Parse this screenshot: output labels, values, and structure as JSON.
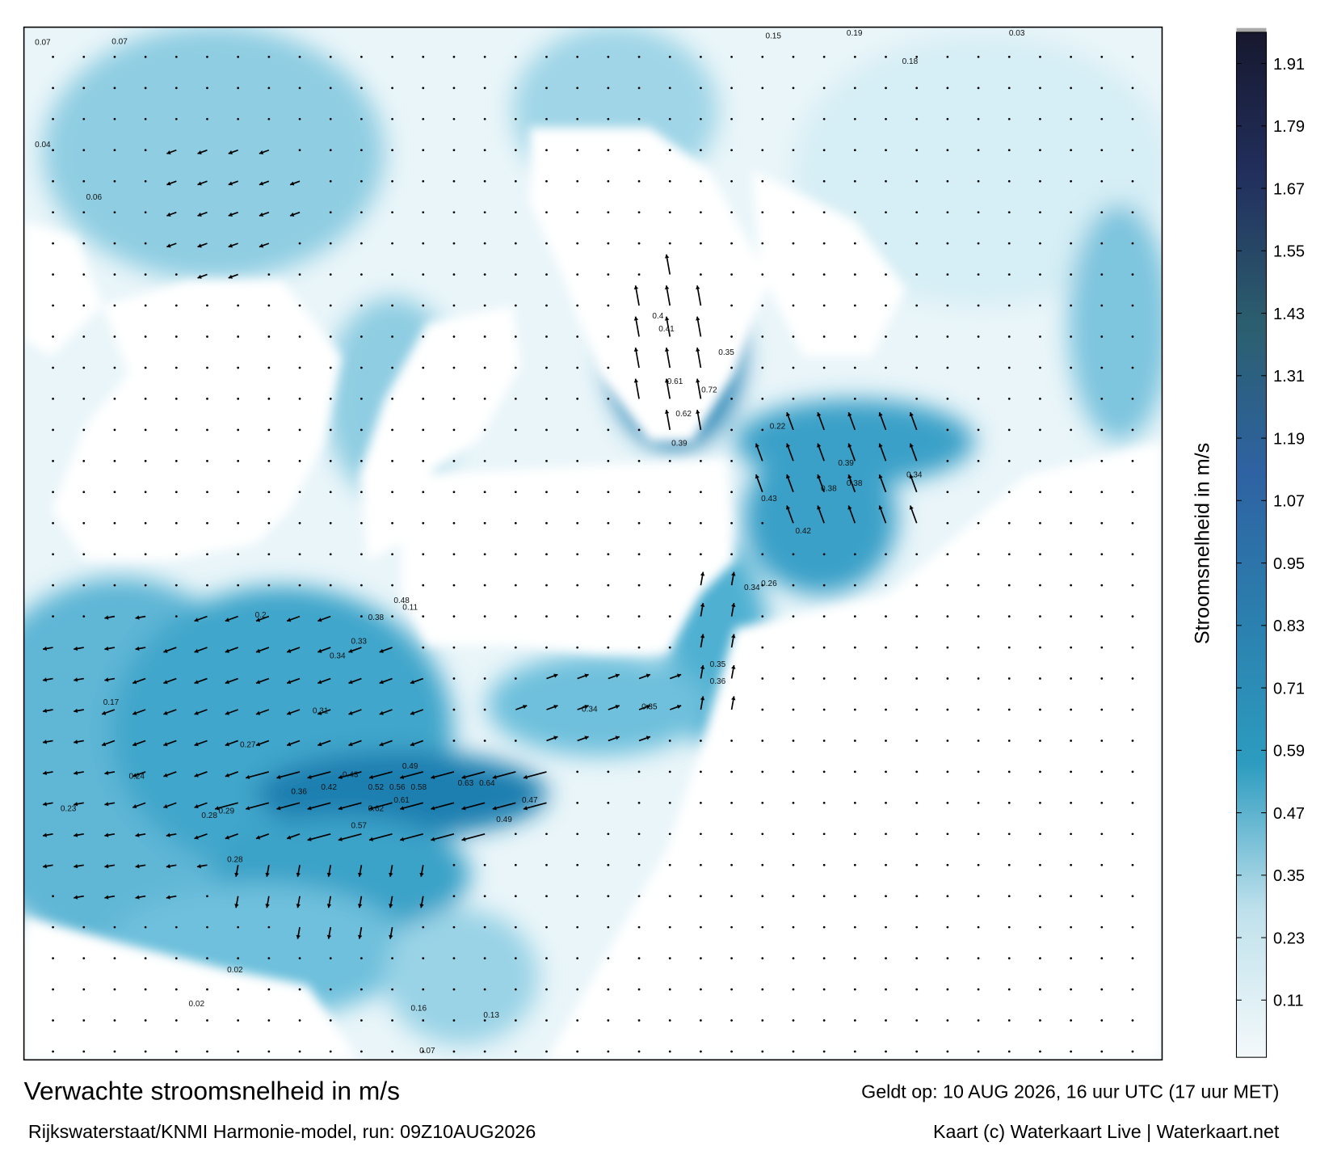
{
  "map": {
    "title": "Verwachte stroomsnelheid in m/s",
    "subtitle": "Rijkswaterstaat/KNMI Harmonie-model, run: 09Z10AUG2026",
    "valid_time": "Geldt op: 10 AUG 2026, 16 uur UTC (17 uur MET)",
    "credit": "Kaart (c) Waterkaart Live | Waterkaart.net",
    "speed_labels": [
      "0.48",
      "0.38",
      "0.11",
      "0.33",
      "0.34",
      "0.31",
      "0.43",
      "0.42",
      "0.36",
      "0.52",
      "0.56",
      "0.58",
      "0.49",
      "0.63",
      "0.64",
      "0.61",
      "0.62",
      "0.57",
      "0.49",
      "0.47",
      "0.2",
      "0.27",
      "0.24",
      "0.28",
      "0.28",
      "0.29",
      "0.62",
      "0.39",
      "0.72",
      "0.61",
      "0.4",
      "0.41",
      "0.35",
      "0.39",
      "0.38",
      "0.38",
      "0.42",
      "0.34",
      "0.22",
      "0.43",
      "0.34",
      "0.26",
      "0.35",
      "0.36",
      "0.35",
      "0.34",
      "0.15",
      "0.19",
      "0.18",
      "0.03",
      "0.07",
      "0.07",
      "0.04",
      "0.06",
      "0.02",
      "0.02",
      "0.16",
      "0.13",
      "0.17",
      "0.23",
      "0.07"
    ],
    "colorbar": {
      "label": "Stroomsnelheid in m/s",
      "lim": [
        0,
        1.97
      ],
      "ticks": [
        0.11,
        0.23,
        0.35,
        0.47,
        0.59,
        0.71,
        0.83,
        0.95,
        1.07,
        1.19,
        1.31,
        1.43,
        1.55,
        1.67,
        1.79,
        1.91
      ],
      "colors": [
        "#f4f9fb",
        "#bfe1ec",
        "#2d9cc0",
        "#2b7fae",
        "#2e62a2",
        "#2b5f6e",
        "#22305e",
        "#17182e"
      ]
    }
  }
}
